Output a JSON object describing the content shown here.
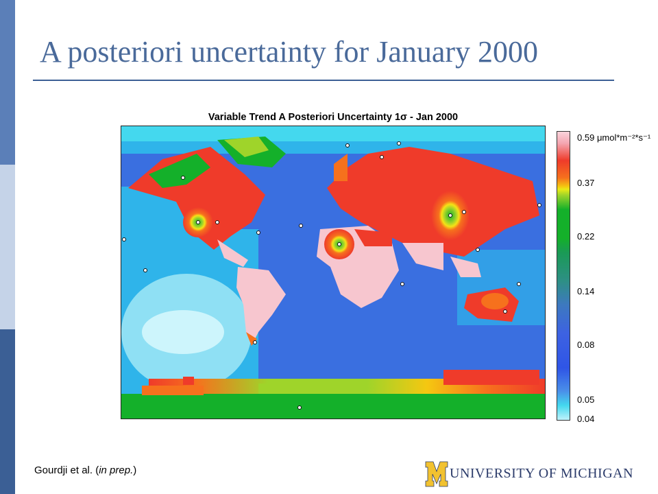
{
  "slide": {
    "title": "A posteriori uncertainty for January 2000",
    "citation_author": "Gourdji et al.",
    "citation_note": "in prep."
  },
  "map": {
    "title": "Variable Trend A Posteriori Uncertainty 1σ - Jan 2000",
    "colorbar": {
      "unit": "μmol*m⁻²*s⁻¹",
      "ticks": [
        "0.59",
        "0.37",
        "0.22",
        "0.14",
        "0.08",
        "0.05",
        "0.04"
      ]
    },
    "colors": {
      "ocean": "#3a6fe0",
      "tropical_land": "#f7c6cf",
      "high_uncertainty": "#ef3b2a",
      "medium_uncertainty": "#14b02a",
      "low_uncertainty": "#bff2fb"
    }
  },
  "logo": {
    "text": "UNIVERSITY OF MICHIGAN",
    "block_letter": "M",
    "colors": {
      "maize": "#f2c230",
      "blue": "#2b3b6a"
    }
  }
}
